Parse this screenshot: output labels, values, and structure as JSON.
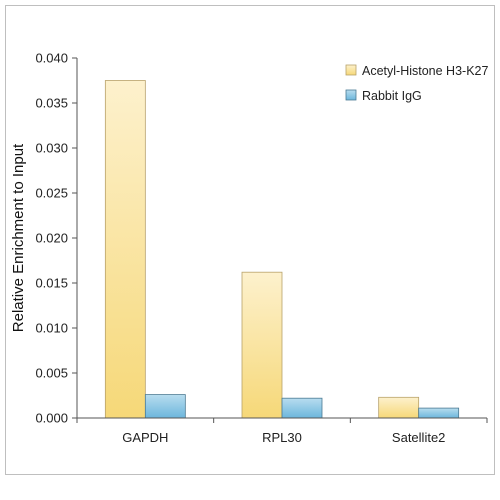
{
  "chart_data": {
    "type": "bar",
    "categories": [
      "GAPDH",
      "RPL30",
      "Satellite2"
    ],
    "series": [
      {
        "name": "Acetyl-Histone H3-K27",
        "values": [
          0.0375,
          0.0162,
          0.0023
        ],
        "color": "#f6da82"
      },
      {
        "name": "Rabbit IgG",
        "values": [
          0.0026,
          0.0022,
          0.0011
        ],
        "color": "#7fc0de"
      }
    ],
    "title": "",
    "xlabel": "",
    "ylabel": "Relative Enrichment to Input",
    "ylim": [
      0,
      0.04
    ],
    "yticks": [
      "0.000",
      "0.005",
      "0.010",
      "0.015",
      "0.020",
      "0.025",
      "0.030",
      "0.035",
      "0.040"
    ],
    "grid": false,
    "legend_position": "top-right"
  }
}
